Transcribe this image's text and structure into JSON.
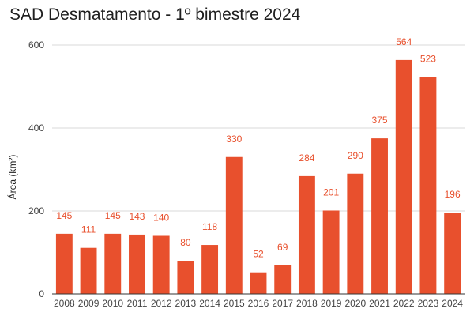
{
  "chart_data": {
    "type": "bar",
    "title": "SAD Desmatamento - 1º bimestre 2024",
    "xlabel": "",
    "ylabel": "Área (km²)",
    "categories": [
      "2008",
      "2009",
      "2010",
      "2011",
      "2012",
      "2013",
      "2014",
      "2015",
      "2016",
      "2017",
      "2018",
      "2019",
      "2020",
      "2021",
      "2022",
      "2023",
      "2024"
    ],
    "series": [
      {
        "values": [
          145,
          111,
          145,
          143,
          140,
          80,
          118,
          330,
          52,
          69,
          284,
          201,
          290,
          375,
          564,
          523,
          196
        ]
      }
    ],
    "ylim": [
      0,
      600
    ],
    "yticks": [
      0,
      200,
      400,
      600
    ],
    "grid": true,
    "legend": "none",
    "data_labels": true,
    "colors": {
      "bar": "#e8502d",
      "data_label": "#e8502d",
      "grid": "#d9d9d9",
      "axis": "#333333"
    }
  }
}
